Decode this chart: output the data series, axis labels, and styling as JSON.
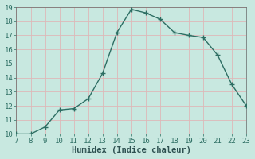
{
  "x": [
    7,
    8,
    9,
    10,
    11,
    12,
    13,
    14,
    15,
    16,
    17,
    18,
    19,
    20,
    21,
    22,
    23
  ],
  "y": [
    10.0,
    10.0,
    10.5,
    11.7,
    11.8,
    12.5,
    14.3,
    17.2,
    18.85,
    18.6,
    18.15,
    17.2,
    17.0,
    16.85,
    15.6,
    13.5,
    12.0
  ],
  "line_color": "#2d6e63",
  "marker": "+",
  "marker_size": 4,
  "marker_linewidth": 1.0,
  "line_width": 1.0,
  "bg_color": "#c8e8e0",
  "grid_color": "#deb8b8",
  "xlabel": "Humidex (Indice chaleur)",
  "xlim": [
    7,
    23
  ],
  "ylim": [
    10,
    19
  ],
  "xticks": [
    7,
    8,
    9,
    10,
    11,
    12,
    13,
    14,
    15,
    16,
    17,
    18,
    19,
    20,
    21,
    22,
    23
  ],
  "yticks": [
    10,
    11,
    12,
    13,
    14,
    15,
    16,
    17,
    18,
    19
  ],
  "tick_label_fontsize": 6.5,
  "xlabel_fontsize": 7.5,
  "tick_color": "#2d6e63",
  "xlabel_color": "#2d5050"
}
